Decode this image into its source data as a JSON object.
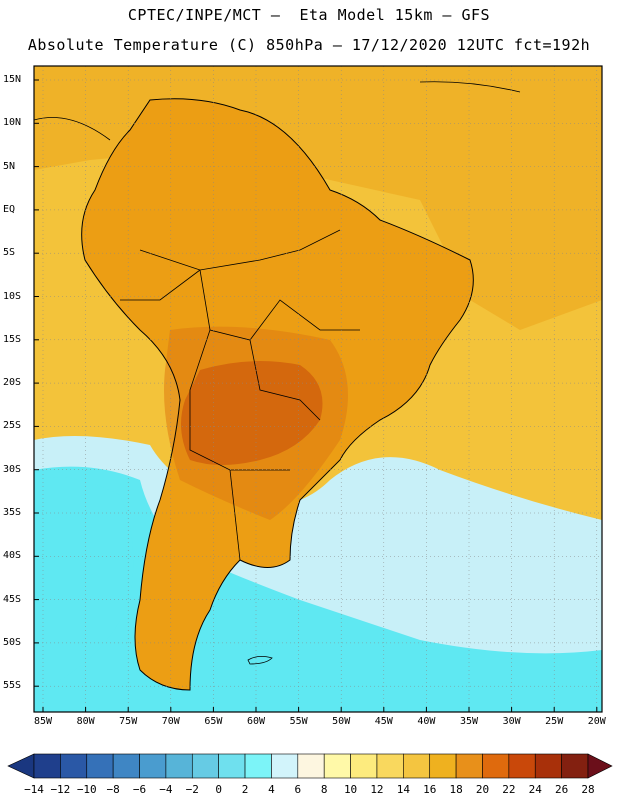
{
  "header": {
    "line1": "CPTEC/INPE/MCT –  Eta Model 15km – GFS",
    "line2": "Absolute Temperature (C) 850hPa – 17/12/2020 12UTC fct=192h"
  },
  "axes": {
    "lat_labels": [
      "15N",
      "10N",
      "5N",
      "EQ",
      "5S",
      "10S",
      "15S",
      "20S",
      "25S",
      "30S",
      "35S",
      "40S",
      "45S",
      "50S",
      "55S"
    ],
    "lon_labels": [
      "85W",
      "80W",
      "75W",
      "70W",
      "65W",
      "60W",
      "55W",
      "50W",
      "45W",
      "40W",
      "35W",
      "30W",
      "25W",
      "20W"
    ]
  },
  "colorbar": {
    "labels": [
      "-14",
      "-12",
      "-10",
      "-8",
      "-6",
      "-4",
      "-2",
      "0",
      "2",
      "4",
      "6",
      "8",
      "10",
      "12",
      "14",
      "16",
      "18",
      "20",
      "22",
      "24",
      "26",
      "28"
    ],
    "colors": [
      "#1f3f8c",
      "#2a58a6",
      "#3571b8",
      "#3f86c4",
      "#4a9ccf",
      "#57b4d8",
      "#66cbe4",
      "#6fe0ee",
      "#7cf4f8",
      "#d2f4fb",
      "#fdf6e0",
      "#fff9a8",
      "#fdeb7e",
      "#f9d85e",
      "#f4c540",
      "#efb11f",
      "#e8901a",
      "#df6a0d",
      "#c9480a",
      "#a8300a",
      "#832010"
    ],
    "under_color": "#1a3780",
    "over_color": "#6b0f1a"
  },
  "map": {
    "ocean_color": "#f3c33a",
    "land_color": "#ec9e14",
    "hot_core_color": "#c8520a",
    "cold_water_color": "#5fe8f2",
    "cool_water_color": "#c8f0f8"
  }
}
